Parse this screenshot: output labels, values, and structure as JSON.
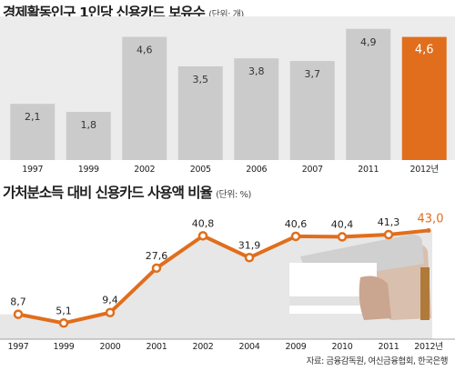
{
  "chart_data": [
    {
      "type": "bar",
      "title": "경제활동인구 1인당 신용카드 보유수",
      "unit_label": "(단위: 개)",
      "categories": [
        "1997",
        "1999",
        "2002",
        "2005",
        "2006",
        "2007",
        "2011",
        "2012년"
      ],
      "values": [
        2.1,
        1.8,
        4.6,
        3.5,
        3.8,
        3.7,
        4.9,
        4.6
      ],
      "value_labels": [
        "2,1",
        "1,8",
        "4,6",
        "3,5",
        "3,8",
        "3,7",
        "4,9",
        "4,6"
      ],
      "highlight_index": 7,
      "ylim": [
        0,
        5.3
      ],
      "colors": {
        "bar": "#cbcbcb",
        "highlight": "#e06e1c",
        "panel": "#ececec",
        "label_dark": "#333333",
        "label_light": "#ffffff"
      }
    },
    {
      "type": "line",
      "title": "가처분소득 대비 신용카드 사용액 비율",
      "unit_label": "(단위: %)",
      "categories": [
        "1997",
        "1999",
        "2000",
        "2001",
        "2002",
        "2004",
        "2009",
        "2010",
        "2011",
        "2012년"
      ],
      "values": [
        8.7,
        5.1,
        9.4,
        27.6,
        40.8,
        31.9,
        40.6,
        40.4,
        41.3,
        43.0
      ],
      "value_labels": [
        "8,7",
        "5,1",
        "9,4",
        "27,6",
        "40,8",
        "31,9",
        "40,6",
        "40,4",
        "41,3",
        "43,0"
      ],
      "highlight_index": 9,
      "ylim": [
        0,
        48
      ],
      "colors": {
        "line": "#e06e1c",
        "area": "#e7e7e7",
        "marker_fill": "#ffffff",
        "label_dark": "#222222",
        "label_highlight": "#e06e1c"
      }
    }
  ],
  "source": "자료: 금융감독원, 여신금융협회, 한국은행"
}
